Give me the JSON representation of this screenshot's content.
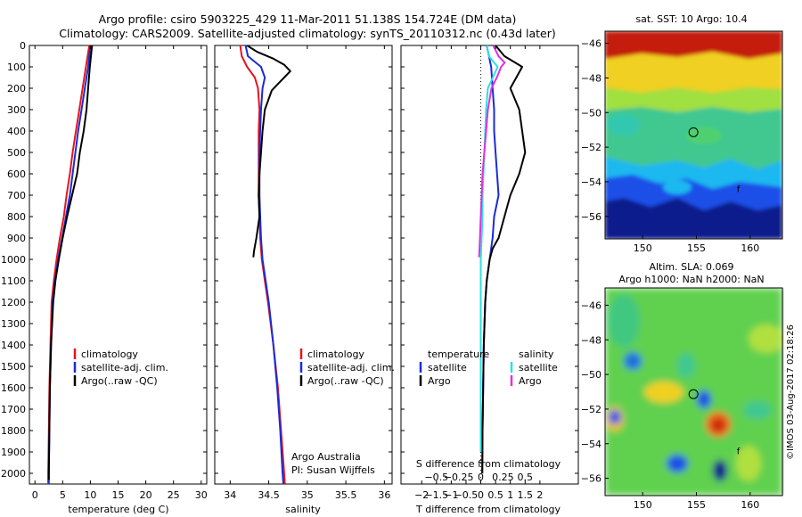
{
  "header": {
    "title_line1": "Argo profile: csiro 5903225_429 11-Mar-2011 51.138S 154.724E (DM data)",
    "title_line2": "Climatology: CARS2009. Satellite-adjusted climatology: synTS_20110312.nc (0.43d later)"
  },
  "colors": {
    "climatology": "#e8141c",
    "satellite": "#1a2cd8",
    "argo": "#000000",
    "sat_salinity": "#2ee0e0",
    "argo_salinity": "#e030e0"
  },
  "chart_data": [
    {
      "id": "temperature",
      "type": "line",
      "xlabel": "temperature (deg C)",
      "ylim": [
        2050,
        0
      ],
      "xlim": [
        -1,
        31
      ],
      "xticks": [
        0,
        5,
        10,
        15,
        20,
        25,
        30
      ],
      "yticks": [
        0,
        100,
        200,
        300,
        400,
        500,
        600,
        700,
        800,
        900,
        1000,
        1100,
        1200,
        1300,
        1400,
        1500,
        1600,
        1700,
        1800,
        1900,
        2000
      ],
      "legend": [
        "climatology",
        "satellite-adj. clim.",
        "Argo(..raw -QC)"
      ],
      "series": [
        {
          "name": "climatology",
          "color": "#e8141c",
          "depth": [
            0,
            100,
            200,
            300,
            400,
            500,
            600,
            700,
            800,
            900,
            1000,
            1100,
            1200,
            1400,
            1600,
            1800,
            2000,
            2050
          ],
          "values": [
            9.8,
            9.2,
            8.6,
            8.0,
            7.4,
            6.8,
            6.3,
            5.7,
            5.2,
            4.5,
            3.9,
            3.4,
            3.0,
            2.8,
            2.6,
            2.5,
            2.4,
            2.4
          ]
        },
        {
          "name": "satellite-adj. clim.",
          "color": "#1a2cd8",
          "depth": [
            0,
            100,
            200,
            300,
            400,
            500,
            600,
            700,
            800,
            900,
            1000,
            1100,
            1200,
            1400,
            1600,
            1800,
            2000,
            2050
          ],
          "values": [
            10.0,
            9.6,
            9.0,
            8.4,
            7.8,
            7.3,
            6.8,
            6.3,
            5.6,
            4.9,
            4.2,
            3.6,
            3.2,
            2.9,
            2.7,
            2.6,
            2.5,
            2.5
          ]
        },
        {
          "name": "Argo(..raw -QC)",
          "color": "#000000",
          "depth": [
            0,
            100,
            200,
            300,
            400,
            500,
            600,
            700,
            800,
            900,
            1000,
            1100,
            1200,
            1300,
            1400,
            1600,
            1800,
            2000,
            2030
          ],
          "values": [
            10.3,
            9.9,
            9.6,
            9.3,
            8.8,
            8.1,
            7.6,
            6.7,
            5.8,
            5.0,
            4.3,
            3.7,
            3.3,
            3.1,
            2.9,
            2.7,
            2.6,
            2.5,
            2.5
          ]
        }
      ]
    },
    {
      "id": "salinity",
      "type": "line",
      "xlabel": "salinity",
      "ylim": [
        2050,
        0
      ],
      "xlim": [
        33.8,
        36.1
      ],
      "xticks": [
        34,
        34.5,
        35,
        35.5,
        36
      ],
      "legend": [
        "climatology",
        "satellite-adj. clim.",
        "Argo(..raw -QC)"
      ],
      "annotation": [
        "Argo Australia",
        "PI: Susan Wijffels"
      ],
      "series": [
        {
          "name": "climatology",
          "color": "#e8141c",
          "depth": [
            0,
            50,
            100,
            150,
            200,
            300,
            400,
            500,
            600,
            700,
            800,
            900,
            1000,
            1100,
            1200,
            1400,
            1600,
            1800,
            2000,
            2050
          ],
          "values": [
            34.13,
            34.15,
            34.22,
            34.32,
            34.36,
            34.38,
            34.37,
            34.37,
            34.37,
            34.37,
            34.38,
            34.39,
            34.41,
            34.45,
            34.49,
            34.56,
            34.62,
            34.66,
            34.7,
            34.71
          ]
        },
        {
          "name": "satellite-adj. clim.",
          "color": "#1a2cd8",
          "depth": [
            0,
            50,
            100,
            150,
            200,
            300,
            400,
            500,
            600,
            700,
            800,
            900,
            1000,
            1100,
            1200,
            1400,
            1600,
            1800,
            2000,
            2050
          ],
          "values": [
            34.2,
            34.23,
            34.4,
            34.45,
            34.42,
            34.4,
            34.39,
            34.38,
            34.38,
            34.38,
            34.39,
            34.4,
            34.42,
            34.46,
            34.5,
            34.56,
            34.61,
            34.65,
            34.68,
            34.69
          ]
        },
        {
          "name": "Argo(..raw -QC)",
          "color": "#000000",
          "depth": [
            0,
            30,
            60,
            90,
            120,
            150,
            180,
            210,
            300,
            400,
            500,
            600,
            700,
            800,
            900,
            960,
            990
          ],
          "values": [
            34.22,
            34.35,
            34.55,
            34.7,
            34.78,
            34.7,
            34.62,
            34.54,
            34.45,
            34.42,
            34.4,
            34.38,
            34.37,
            34.38,
            34.34,
            34.31,
            34.3
          ]
        }
      ]
    },
    {
      "id": "difference",
      "type": "line",
      "xlabel": "T difference from climatology",
      "secondary_xlabel": "S difference from climatology",
      "ylim": [
        2050,
        0
      ],
      "xlim": [
        -2.7,
        3.3
      ],
      "xticks": [
        -2,
        -1.5,
        -1,
        -0.5,
        0,
        0.5,
        1,
        1.5,
        2
      ],
      "xtick_labels": [
        "−2",
        "−1.5",
        "−1",
        "−0.5",
        "0",
        "0.5",
        "1",
        "1.5",
        "2"
      ],
      "secondary_xticks": [
        -0.5,
        -0.25,
        0,
        0.25,
        0.5
      ],
      "secondary_xtick_labels": [
        "−0.5",
        "−0.25",
        "0",
        "0.25",
        "0.5"
      ],
      "legend_titles": [
        "temperature",
        "salinity"
      ],
      "legend": [
        "satellite",
        "Argo",
        "satellite",
        "Argo"
      ],
      "series": [
        {
          "name": "satellite",
          "group": "temperature",
          "color": "#1a2cd8",
          "depth": [
            0,
            100,
            200,
            300,
            400,
            500,
            600,
            700,
            800,
            900,
            1000,
            1100,
            1200,
            1400,
            1600,
            1800,
            2000
          ],
          "values": [
            0.2,
            0.35,
            0.4,
            0.45,
            0.45,
            0.5,
            0.55,
            0.6,
            0.45,
            0.4,
            0.3,
            0.2,
            0.15,
            0.1,
            0.08,
            0.06,
            0.05
          ]
        },
        {
          "name": "Argo",
          "group": "temperature",
          "color": "#000000",
          "depth": [
            0,
            50,
            100,
            150,
            200,
            300,
            400,
            500,
            600,
            700,
            800,
            900,
            950,
            1000,
            1100,
            1200,
            1400,
            1600,
            1800,
            2000
          ],
          "values": [
            0.5,
            0.8,
            1.4,
            1.2,
            1.0,
            1.3,
            1.4,
            1.5,
            1.3,
            1.0,
            0.8,
            0.6,
            0.4,
            0.3,
            0.2,
            0.15,
            0.1,
            0.08,
            0.06,
            0.05
          ]
        },
        {
          "name": "satellite",
          "group": "salinity",
          "color": "#2ee0e0",
          "depth": [
            0,
            50,
            100,
            200,
            300,
            400,
            500,
            600,
            700,
            800,
            900,
            1000,
            1200,
            1400,
            1600,
            1800,
            1900
          ],
          "values": [
            0.07,
            0.09,
            0.19,
            0.08,
            0.06,
            0.05,
            0.04,
            0.03,
            0.02,
            0.02,
            0.01,
            0.0,
            0.0,
            0.0,
            0.0,
            0.0,
            0.0
          ]
        },
        {
          "name": "Argo",
          "group": "salinity",
          "color": "#e030e0",
          "depth": [
            0,
            50,
            80,
            100,
            150,
            200,
            250,
            300,
            400,
            500,
            600,
            700,
            800,
            900,
            950,
            990
          ],
          "values": [
            0.14,
            0.2,
            0.27,
            0.23,
            0.18,
            0.12,
            0.1,
            0.08,
            0.06,
            0.04,
            0.02,
            0.01,
            0.0,
            -0.01,
            -0.015,
            -0.02
          ]
        }
      ]
    },
    {
      "id": "sst_map",
      "type": "heatmap",
      "title": "sat. SST: 10 Argo: 10.4",
      "xlim": [
        146.5,
        163
      ],
      "ylim": [
        -57.3,
        -45.3
      ],
      "xticks": [
        150,
        155,
        160
      ],
      "yticks": [
        -46,
        -48,
        -50,
        -52,
        -54,
        -56
      ],
      "profile_location": {
        "lon": 154.724,
        "lat": -51.138
      },
      "marker_label": "f",
      "marker_location": {
        "lon": 158.9,
        "lat": -54.6
      }
    },
    {
      "id": "sla_map",
      "type": "heatmap",
      "title_line1": "Altim. SLA: 0.069",
      "title_line2": "Argo h1000: NaN h2000: NaN",
      "xlim": [
        146.5,
        163
      ],
      "ylim": [
        -57.0,
        -45.0
      ],
      "xticks": [
        150,
        155,
        160
      ],
      "yticks": [
        -46,
        -48,
        -50,
        -52,
        -54,
        -56
      ],
      "profile_location": {
        "lon": 154.724,
        "lat": -51.138
      },
      "marker_label": "f",
      "marker_location": {
        "lon": 158.9,
        "lat": -54.6
      }
    }
  ],
  "footer": {
    "stamp": "©IMOS 03-Aug-2017 02:18:26"
  }
}
